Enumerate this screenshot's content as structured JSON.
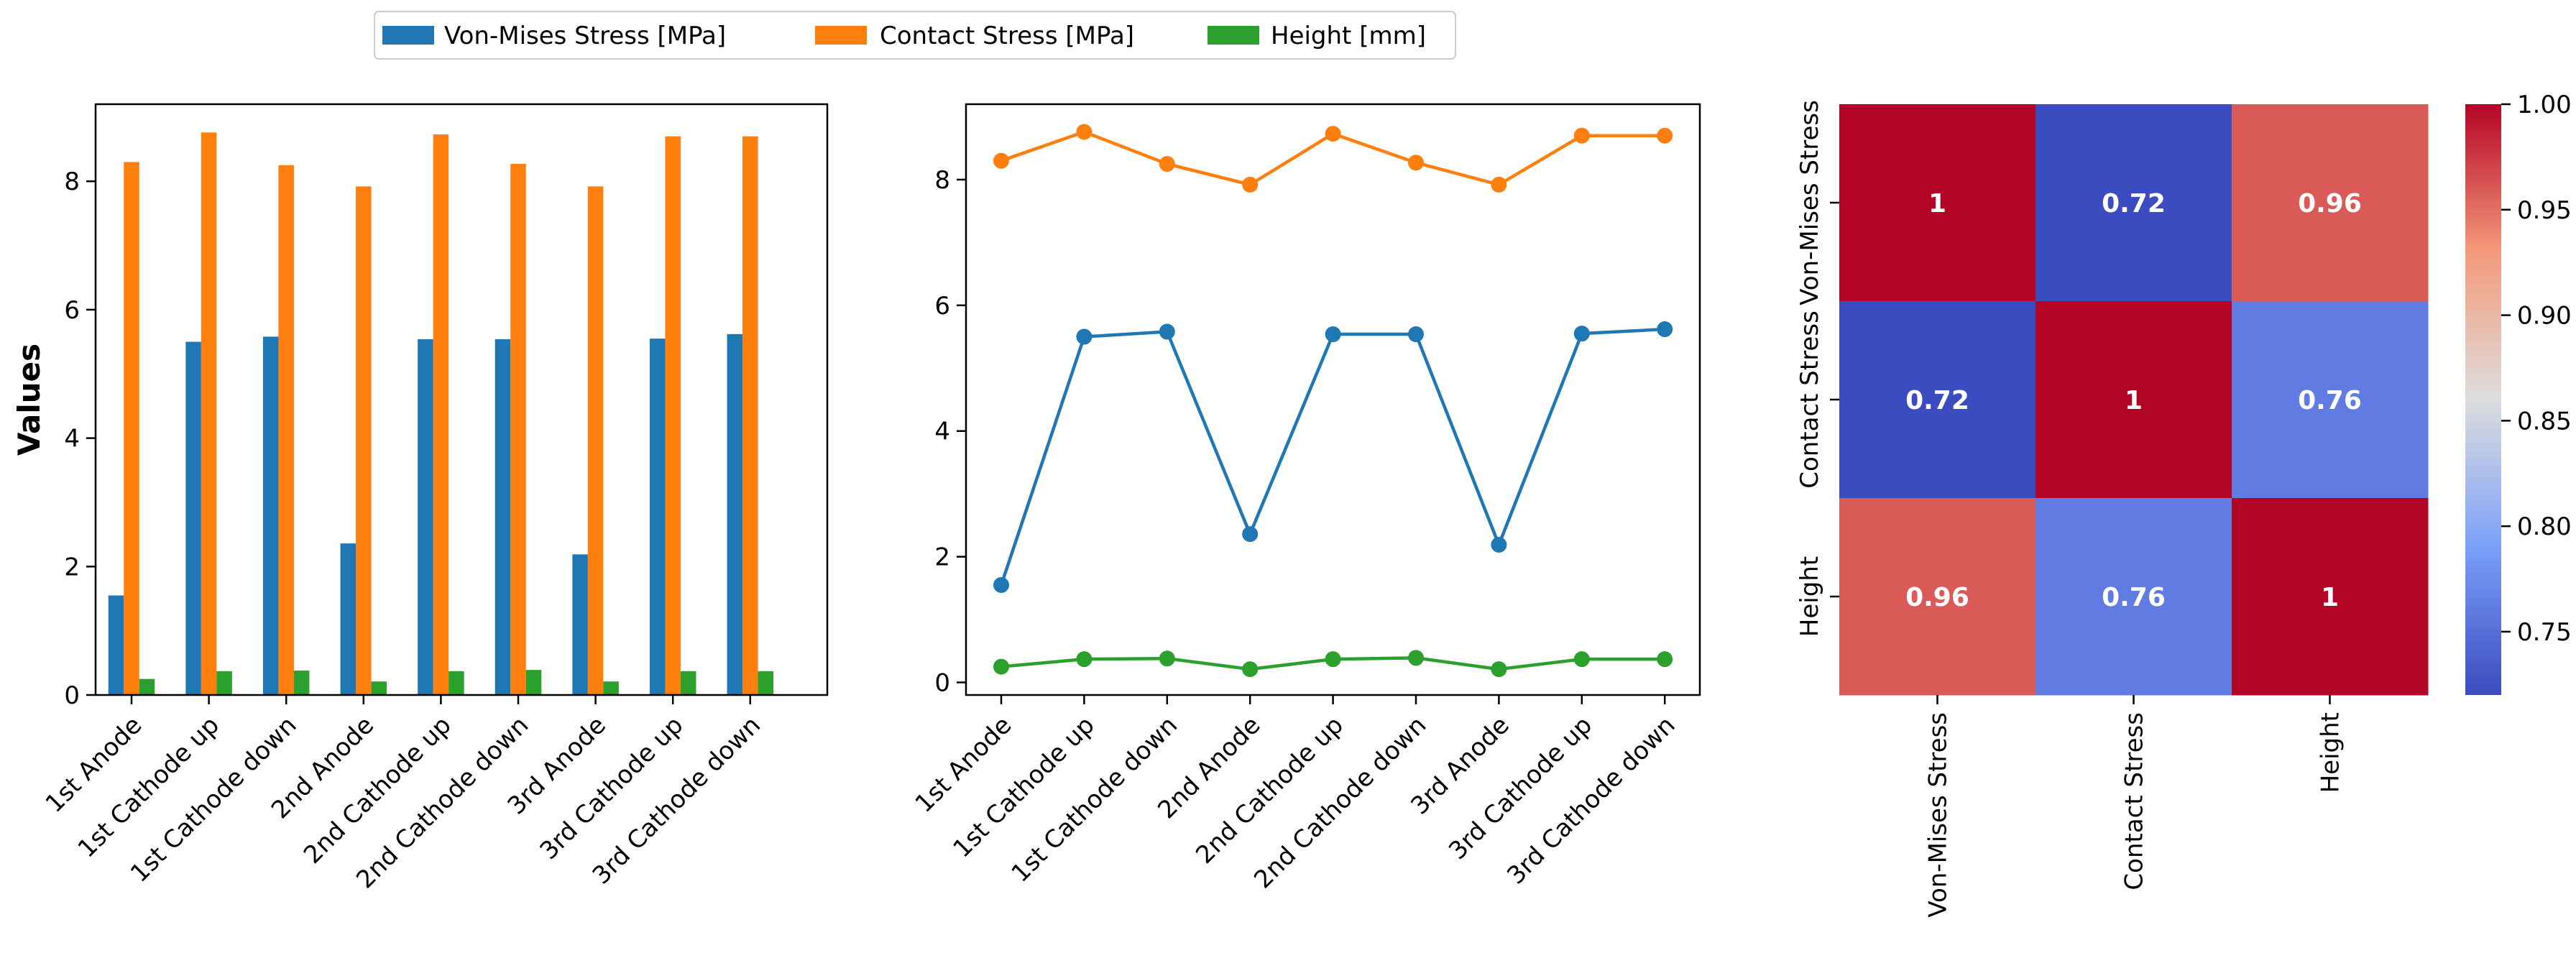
{
  "legend": [
    {
      "name": "Von-Mises Stress [MPa]",
      "color": "#1f77b4"
    },
    {
      "name": "Contact Stress [MPa]",
      "color": "#ff7f0e"
    },
    {
      "name": "Height [mm]",
      "color": "#2ca02c"
    }
  ],
  "chart_data": [
    {
      "type": "bar",
      "ylabel": "Values",
      "xlabel": "",
      "ylim": [
        0,
        9.2
      ],
      "yticks": [
        0,
        2,
        4,
        6,
        8
      ],
      "categories": [
        "1st Anode",
        "1st Cathode up",
        "1st Cathode down",
        "2nd Anode",
        "2nd Cathode up",
        "2nd Cathode down",
        "3rd Anode",
        "3rd Cathode up",
        "3rd Cathode down"
      ],
      "series": [
        {
          "name": "Von-Mises Stress [MPa]",
          "values": [
            1.55,
            5.5,
            5.58,
            2.36,
            5.54,
            5.54,
            2.19,
            5.55,
            5.62
          ]
        },
        {
          "name": "Contact Stress [MPa]",
          "values": [
            8.3,
            8.76,
            8.25,
            7.92,
            8.73,
            8.27,
            7.92,
            8.7,
            8.7
          ]
        },
        {
          "name": "Height [mm]",
          "values": [
            0.25,
            0.37,
            0.38,
            0.21,
            0.37,
            0.39,
            0.21,
            0.37,
            0.37
          ]
        }
      ]
    },
    {
      "type": "line",
      "ylim": [
        -0.2,
        9.2
      ],
      "yticks": [
        0,
        2,
        4,
        6,
        8
      ],
      "categories": [
        "1st Anode",
        "1st Cathode up",
        "1st Cathode down",
        "2nd Anode",
        "2nd Cathode up",
        "2nd Cathode down",
        "3rd Anode",
        "3rd Cathode up",
        "3rd Cathode down"
      ],
      "series": [
        {
          "name": "Von-Mises Stress [MPa]",
          "values": [
            1.55,
            5.5,
            5.58,
            2.36,
            5.54,
            5.54,
            2.19,
            5.55,
            5.62
          ]
        },
        {
          "name": "Contact Stress [MPa]",
          "values": [
            8.3,
            8.76,
            8.25,
            7.92,
            8.73,
            8.27,
            7.92,
            8.7,
            8.7
          ]
        },
        {
          "name": "Height [mm]",
          "values": [
            0.25,
            0.37,
            0.38,
            0.21,
            0.37,
            0.39,
            0.21,
            0.37,
            0.37
          ]
        }
      ]
    },
    {
      "type": "heatmap",
      "rows": [
        "Von-Mises Stress",
        "Contact Stress",
        "Height"
      ],
      "columns": [
        "Von-Mises Stress",
        "Contact Stress",
        "Height"
      ],
      "values": [
        [
          1,
          0.72,
          0.96
        ],
        [
          0.72,
          1,
          0.76
        ],
        [
          0.96,
          0.76,
          1
        ]
      ],
      "cell_labels": [
        [
          "1",
          "0.72",
          "0.96"
        ],
        [
          "0.72",
          "1",
          "0.76"
        ],
        [
          "0.96",
          "0.76",
          "1"
        ]
      ],
      "colormap": "coolwarm",
      "colorbar": {
        "min": 0.72,
        "max": 1.0,
        "ticks": [
          0.75,
          0.8,
          0.85,
          0.9,
          0.95,
          1.0
        ],
        "tick_labels": [
          "0.75",
          "0.80",
          "0.85",
          "0.90",
          "0.95",
          "1.00"
        ]
      }
    }
  ]
}
